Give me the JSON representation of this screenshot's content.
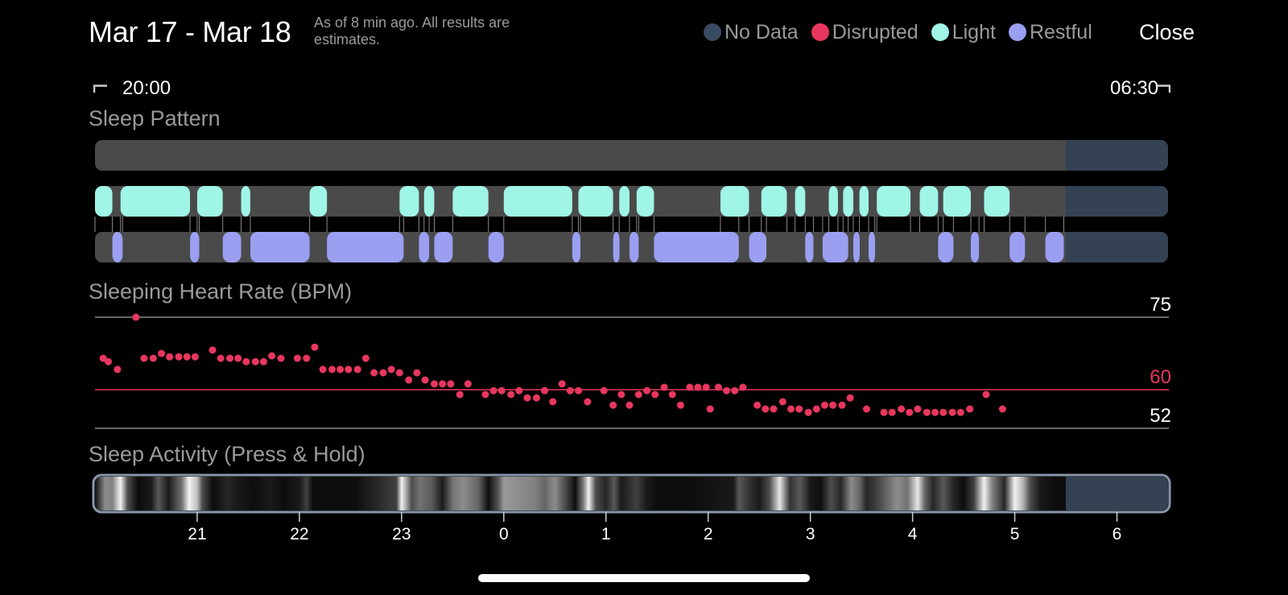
{
  "header": {
    "title": "Mar 17 - Mar 18",
    "subtitle": "As of 8 min ago. All results are estimates.",
    "close_label": "Close"
  },
  "legend": [
    {
      "label": "No Data",
      "color": "#3a4a60"
    },
    {
      "label": "Disrupted",
      "color": "#e8375f"
    },
    {
      "label": "Light",
      "color": "#9ff5e6"
    },
    {
      "label": "Restful",
      "color": "#9b9ff2"
    }
  ],
  "time_range": {
    "start": "20:00",
    "end": "06:30"
  },
  "sleep_pattern": {
    "label": "Sleep Pattern",
    "x_domain": [
      20,
      30.5
    ],
    "no_data_from": 29.5,
    "colors": {
      "no_data": "#344254",
      "track": "#4a4a4a",
      "light": "#9ff5e6",
      "restful": "#9b9ff2"
    },
    "light_segments": [
      [
        20.0,
        20.17
      ],
      [
        20.25,
        20.93
      ],
      [
        21.0,
        21.25
      ],
      [
        21.43,
        21.52
      ],
      [
        22.1,
        22.27
      ],
      [
        22.98,
        23.17
      ],
      [
        23.22,
        23.32
      ],
      [
        23.5,
        23.85
      ],
      [
        24.0,
        24.67
      ],
      [
        24.73,
        25.07
      ],
      [
        25.13,
        25.23
      ],
      [
        25.3,
        25.47
      ],
      [
        26.12,
        26.4
      ],
      [
        26.52,
        26.77
      ],
      [
        26.85,
        26.95
      ],
      [
        27.18,
        27.27
      ],
      [
        27.32,
        27.42
      ],
      [
        27.48,
        27.57
      ],
      [
        27.65,
        27.98
      ],
      [
        28.07,
        28.25
      ],
      [
        28.3,
        28.57
      ],
      [
        28.7,
        28.95
      ]
    ],
    "restful_segments": [
      [
        20.17,
        20.27
      ],
      [
        20.93,
        21.02
      ],
      [
        21.25,
        21.43
      ],
      [
        21.52,
        22.1
      ],
      [
        22.27,
        23.02
      ],
      [
        23.17,
        23.27
      ],
      [
        23.32,
        23.5
      ],
      [
        23.85,
        24.0
      ],
      [
        24.67,
        24.75
      ],
      [
        25.07,
        25.13
      ],
      [
        25.23,
        25.32
      ],
      [
        25.47,
        26.3
      ],
      [
        26.4,
        26.57
      ],
      [
        26.95,
        27.03
      ],
      [
        27.12,
        27.37
      ],
      [
        27.42,
        27.48
      ],
      [
        27.57,
        27.63
      ],
      [
        28.25,
        28.4
      ],
      [
        28.57,
        28.65
      ],
      [
        28.95,
        29.1
      ],
      [
        29.3,
        29.48
      ]
    ]
  },
  "heart_rate": {
    "label": "Sleeping Heart Rate (BPM)",
    "color": "#e8375f",
    "y_range": [
      52,
      75
    ],
    "reference_lines": [
      {
        "value": 75,
        "label": "75",
        "color": "#8a8a8a",
        "label_color": "#ffffff"
      },
      {
        "value": 60,
        "label": "60",
        "color": "#e8375f",
        "label_color": "#e8375f"
      },
      {
        "value": 52,
        "label": "52",
        "color": "#8a8a8a",
        "label_color": "#ffffff"
      }
    ],
    "points": [
      [
        20.08,
        66.5
      ],
      [
        20.13,
        65.8
      ],
      [
        20.22,
        64.2
      ],
      [
        20.4,
        75.0
      ],
      [
        20.48,
        66.5
      ],
      [
        20.57,
        66.5
      ],
      [
        20.65,
        67.5
      ],
      [
        20.73,
        66.8
      ],
      [
        20.82,
        66.8
      ],
      [
        20.9,
        66.8
      ],
      [
        20.98,
        66.8
      ],
      [
        21.15,
        68.2
      ],
      [
        21.23,
        66.5
      ],
      [
        21.32,
        66.5
      ],
      [
        21.4,
        66.5
      ],
      [
        21.48,
        65.8
      ],
      [
        21.57,
        65.8
      ],
      [
        21.65,
        65.8
      ],
      [
        21.73,
        67.0
      ],
      [
        21.82,
        66.5
      ],
      [
        21.98,
        66.5
      ],
      [
        22.07,
        66.5
      ],
      [
        22.15,
        68.8
      ],
      [
        22.23,
        64.2
      ],
      [
        22.32,
        64.2
      ],
      [
        22.4,
        64.2
      ],
      [
        22.48,
        64.2
      ],
      [
        22.57,
        64.2
      ],
      [
        22.65,
        66.5
      ],
      [
        22.73,
        63.5
      ],
      [
        22.82,
        63.5
      ],
      [
        22.9,
        64.2
      ],
      [
        22.98,
        63.5
      ],
      [
        23.07,
        62.0
      ],
      [
        23.15,
        63.5
      ],
      [
        23.23,
        62.0
      ],
      [
        23.32,
        61.2
      ],
      [
        23.4,
        61.2
      ],
      [
        23.48,
        61.2
      ],
      [
        23.57,
        59.0
      ],
      [
        23.65,
        61.2
      ],
      [
        23.82,
        59.0
      ],
      [
        23.9,
        59.8
      ],
      [
        23.98,
        59.8
      ],
      [
        24.07,
        59.0
      ],
      [
        24.15,
        59.8
      ],
      [
        24.23,
        58.3
      ],
      [
        24.32,
        58.3
      ],
      [
        24.4,
        59.8
      ],
      [
        24.48,
        57.5
      ],
      [
        24.57,
        61.2
      ],
      [
        24.65,
        59.8
      ],
      [
        24.73,
        59.8
      ],
      [
        24.82,
        57.5
      ],
      [
        24.98,
        59.8
      ],
      [
        25.07,
        56.8
      ],
      [
        25.15,
        59.0
      ],
      [
        25.23,
        56.8
      ],
      [
        25.32,
        59.0
      ],
      [
        25.4,
        59.8
      ],
      [
        25.48,
        59.0
      ],
      [
        25.57,
        60.5
      ],
      [
        25.65,
        59.0
      ],
      [
        25.73,
        56.8
      ],
      [
        25.82,
        60.5
      ],
      [
        25.9,
        60.5
      ],
      [
        25.98,
        60.5
      ],
      [
        26.02,
        56.0
      ],
      [
        26.1,
        60.5
      ],
      [
        26.18,
        59.8
      ],
      [
        26.26,
        59.8
      ],
      [
        26.34,
        60.5
      ],
      [
        26.48,
        56.8
      ],
      [
        26.56,
        56.0
      ],
      [
        26.64,
        56.0
      ],
      [
        26.73,
        57.5
      ],
      [
        26.81,
        56.0
      ],
      [
        26.89,
        56.0
      ],
      [
        26.98,
        55.3
      ],
      [
        27.06,
        56.0
      ],
      [
        27.14,
        56.8
      ],
      [
        27.22,
        56.8
      ],
      [
        27.31,
        56.8
      ],
      [
        27.39,
        58.3
      ],
      [
        27.55,
        56.0
      ],
      [
        27.72,
        55.3
      ],
      [
        27.8,
        55.3
      ],
      [
        27.89,
        56.0
      ],
      [
        27.97,
        55.3
      ],
      [
        28.05,
        56.0
      ],
      [
        28.14,
        55.3
      ],
      [
        28.22,
        55.3
      ],
      [
        28.3,
        55.3
      ],
      [
        28.39,
        55.3
      ],
      [
        28.47,
        55.3
      ],
      [
        28.56,
        56.0
      ],
      [
        28.72,
        59.0
      ],
      [
        28.88,
        56.0
      ]
    ]
  },
  "sleep_activity": {
    "label": "Sleep Activity (Press & Hold)",
    "colors": {
      "no_data": "#344254",
      "border": "#8a96a8"
    },
    "no_data_from": 29.5,
    "intensity": [
      [
        20.0,
        0.05
      ],
      [
        20.1,
        0.55
      ],
      [
        20.17,
        0.5
      ],
      [
        20.25,
        0.95
      ],
      [
        20.32,
        0.3
      ],
      [
        20.42,
        0.05
      ],
      [
        20.55,
        0.1
      ],
      [
        20.62,
        0.35
      ],
      [
        20.72,
        0.1
      ],
      [
        20.85,
        0.45
      ],
      [
        20.92,
        0.95
      ],
      [
        21.0,
        0.75
      ],
      [
        21.05,
        0.3
      ],
      [
        21.15,
        0.05
      ],
      [
        21.3,
        0.15
      ],
      [
        21.38,
        0.1
      ],
      [
        21.55,
        0.05
      ],
      [
        21.72,
        0.1
      ],
      [
        21.85,
        0.05
      ],
      [
        22.0,
        0.1
      ],
      [
        22.07,
        0.25
      ],
      [
        22.13,
        0.05
      ],
      [
        22.4,
        0.05
      ],
      [
        22.55,
        0.05
      ],
      [
        22.95,
        0.25
      ],
      [
        23.0,
        0.95
      ],
      [
        23.1,
        0.3
      ],
      [
        23.18,
        0.45
      ],
      [
        23.3,
        0.35
      ],
      [
        23.4,
        0.1
      ],
      [
        23.5,
        0.45
      ],
      [
        23.6,
        0.55
      ],
      [
        23.75,
        0.4
      ],
      [
        23.85,
        0.05
      ],
      [
        23.95,
        0.35
      ],
      [
        24.0,
        0.6
      ],
      [
        24.15,
        0.55
      ],
      [
        24.3,
        0.5
      ],
      [
        24.4,
        0.4
      ],
      [
        24.5,
        0.55
      ],
      [
        24.6,
        0.3
      ],
      [
        24.7,
        0.05
      ],
      [
        24.78,
        0.5
      ],
      [
        24.83,
        0.95
      ],
      [
        24.9,
        0.3
      ],
      [
        25.0,
        0.15
      ],
      [
        25.08,
        0.35
      ],
      [
        25.15,
        0.1
      ],
      [
        25.3,
        0.25
      ],
      [
        25.4,
        0.1
      ],
      [
        25.5,
        0.05
      ],
      [
        25.8,
        0.05
      ],
      [
        26.25,
        0.1
      ],
      [
        26.3,
        0.35
      ],
      [
        26.4,
        0.2
      ],
      [
        26.5,
        0.1
      ],
      [
        26.6,
        0.3
      ],
      [
        26.7,
        0.9
      ],
      [
        26.8,
        0.2
      ],
      [
        26.9,
        0.35
      ],
      [
        27.0,
        0.1
      ],
      [
        27.1,
        0.05
      ],
      [
        27.2,
        0.3
      ],
      [
        27.3,
        0.15
      ],
      [
        27.4,
        0.55
      ],
      [
        27.48,
        0.4
      ],
      [
        27.55,
        0.15
      ],
      [
        27.65,
        0.25
      ],
      [
        27.75,
        0.4
      ],
      [
        27.85,
        0.55
      ],
      [
        27.95,
        0.45
      ],
      [
        28.05,
        0.9
      ],
      [
        28.12,
        0.4
      ],
      [
        28.2,
        0.15
      ],
      [
        28.3,
        0.35
      ],
      [
        28.4,
        0.15
      ],
      [
        28.5,
        0.05
      ],
      [
        28.6,
        0.25
      ],
      [
        28.7,
        0.95
      ],
      [
        28.78,
        0.5
      ],
      [
        28.9,
        0.15
      ],
      [
        29.0,
        0.95
      ],
      [
        29.08,
        0.7
      ],
      [
        29.15,
        0.3
      ],
      [
        29.25,
        0.1
      ],
      [
        29.4,
        0.05
      ],
      [
        29.5,
        0.05
      ]
    ]
  },
  "x_axis": {
    "ticks": [
      {
        "value": 21,
        "label": "21"
      },
      {
        "value": 22,
        "label": "22"
      },
      {
        "value": 23,
        "label": "23"
      },
      {
        "value": 24,
        "label": "0"
      },
      {
        "value": 25,
        "label": "1"
      },
      {
        "value": 26,
        "label": "2"
      },
      {
        "value": 27,
        "label": "3"
      },
      {
        "value": 28,
        "label": "4"
      },
      {
        "value": 29,
        "label": "5"
      },
      {
        "value": 30,
        "label": "6"
      }
    ]
  }
}
